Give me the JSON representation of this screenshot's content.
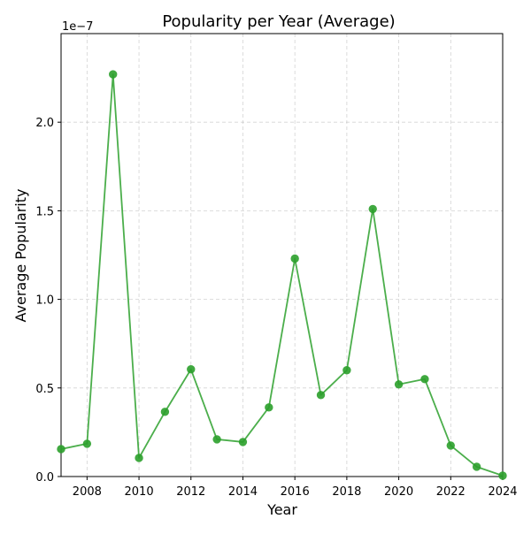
{
  "chart_data": {
    "type": "line",
    "title": "Popularity per Year (Average)",
    "xlabel": "Year",
    "ylabel": "Average Popularity",
    "y_scale_label": "1e−7",
    "y_multiplier": 1e-07,
    "xlim": [
      2007,
      2024
    ],
    "ylim": [
      0,
      2.5
    ],
    "x_ticks": [
      2008,
      2010,
      2012,
      2014,
      2016,
      2018,
      2020,
      2022,
      2024
    ],
    "y_ticks": [
      0.0,
      0.5,
      1.0,
      1.5,
      2.0
    ],
    "y_tick_labels": [
      "0.0",
      "0.5",
      "1.0",
      "1.5",
      "2.0"
    ],
    "grid": true,
    "marker": "circle",
    "series": [
      {
        "color": "#2ca02c",
        "x": [
          2007,
          2008,
          2009,
          2010,
          2011,
          2012,
          2013,
          2014,
          2015,
          2016,
          2017,
          2018,
          2019,
          2020,
          2021,
          2022,
          2023,
          2024
        ],
        "y": [
          0.155,
          0.185,
          2.27,
          0.105,
          0.365,
          0.605,
          0.21,
          0.195,
          0.39,
          1.23,
          0.46,
          0.6,
          1.51,
          0.52,
          0.55,
          0.175,
          0.055,
          0.005
        ]
      }
    ]
  }
}
